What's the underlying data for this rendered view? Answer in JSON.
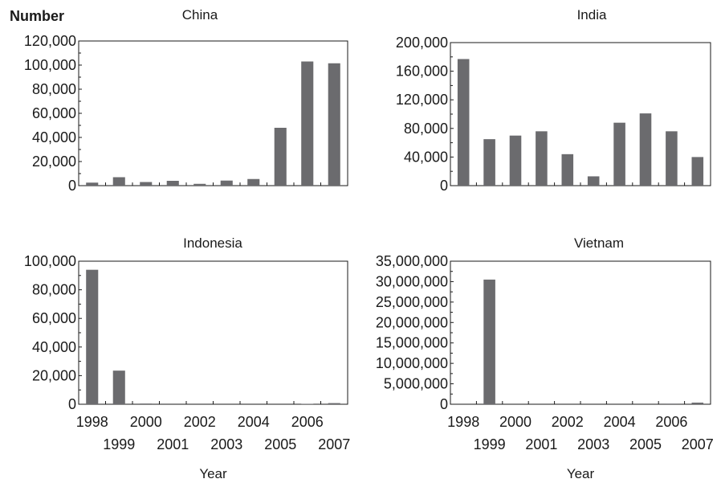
{
  "ylabel": "Number",
  "chart_data": [
    {
      "type": "bar",
      "title": "China",
      "categories": [
        "1998",
        "1999",
        "2000",
        "2001",
        "2002",
        "2003",
        "2004",
        "2005",
        "2006",
        "2007"
      ],
      "values": [
        2500,
        7000,
        3000,
        4000,
        1500,
        4200,
        5500,
        48000,
        103000,
        101500
      ],
      "ylim": [
        0,
        120000
      ],
      "yticks": [
        "0",
        "20,000",
        "40,000",
        "60,000",
        "80,000",
        "100,000",
        "120,000"
      ],
      "show_x_tick_labels": false,
      "xlabel": ""
    },
    {
      "type": "bar",
      "title": "India",
      "categories": [
        "1998",
        "1999",
        "2000",
        "2001",
        "2002",
        "2003",
        "2004",
        "2005",
        "2006",
        "2007"
      ],
      "values": [
        177000,
        65000,
        70000,
        76000,
        44000,
        13000,
        88000,
        101000,
        76000,
        40000
      ],
      "ylim": [
        0,
        200000
      ],
      "yticks": [
        "0",
        "40,000",
        "80,000",
        "120,000",
        "160,000",
        "200,000"
      ],
      "show_x_tick_labels": false,
      "xlabel": ""
    },
    {
      "type": "bar",
      "title": "Indonesia",
      "categories": [
        "1998",
        "1999",
        "2000",
        "2001",
        "2002",
        "2003",
        "2004",
        "2005",
        "2006",
        "2007"
      ],
      "values": [
        94000,
        23500,
        500,
        0,
        0,
        0,
        0,
        0,
        300,
        800
      ],
      "ylim": [
        0,
        100000
      ],
      "yticks": [
        "0",
        "20,000",
        "40,000",
        "60,000",
        "80,000",
        "100,000"
      ],
      "show_x_tick_labels": true,
      "xlabel": "Year"
    },
    {
      "type": "bar",
      "title": "Vietnam",
      "categories": [
        "1998",
        "1999",
        "2000",
        "2001",
        "2002",
        "2003",
        "2004",
        "2005",
        "2006",
        "2007"
      ],
      "values": [
        0,
        30500000,
        0,
        0,
        0,
        0,
        0,
        0,
        150000,
        400000
      ],
      "ylim": [
        0,
        35000000
      ],
      "yticks": [
        "0",
        "5,000,000",
        "10,000,000",
        "15,000,000",
        "20,000,000",
        "25,000,000",
        "30,000,000",
        "35,000,000"
      ],
      "show_x_tick_labels": true,
      "xlabel": "Year"
    }
  ],
  "colors": {
    "bar": "#6b6b6e",
    "axis": "#1a1a1a"
  }
}
